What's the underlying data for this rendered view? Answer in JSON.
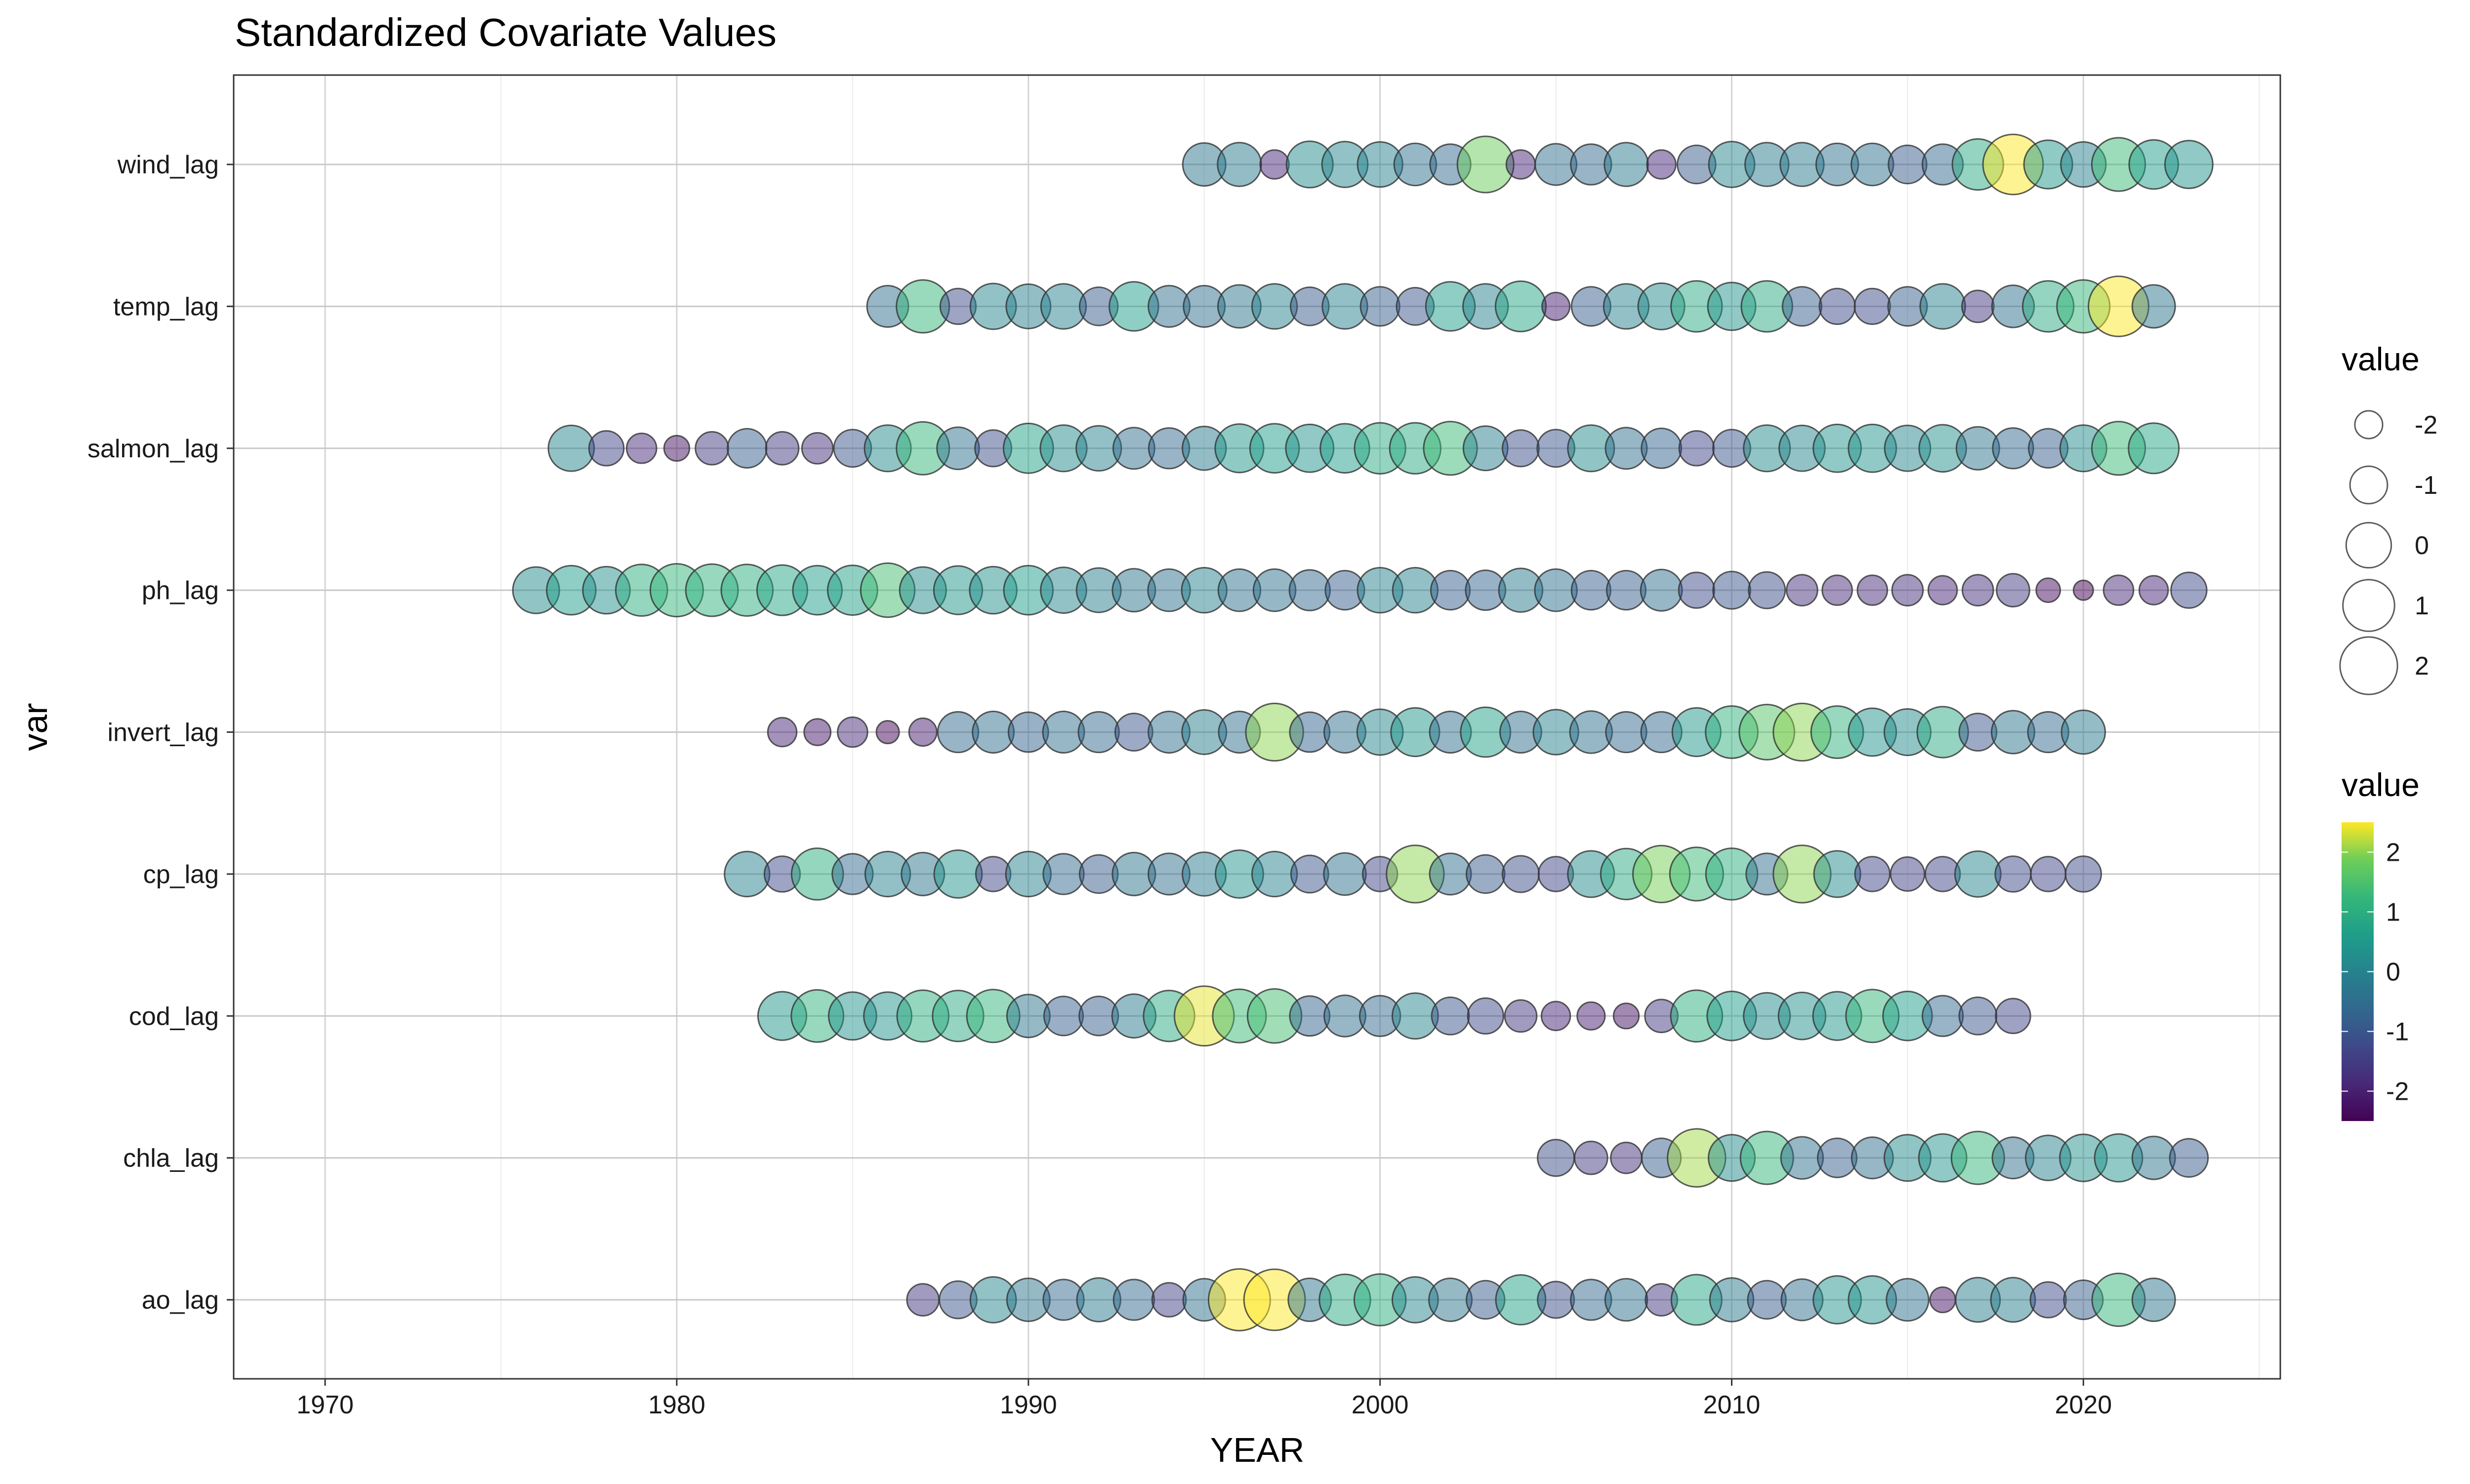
{
  "chart_data": {
    "type": "scatter",
    "title": "Standardized Covariate Values",
    "xlabel": "YEAR",
    "ylabel": "var",
    "xlim": [
      1967.4,
      2025.6
    ],
    "x_ticks": [
      1970,
      1980,
      1990,
      2000,
      2010,
      2020
    ],
    "categories": [
      "wind_lag",
      "temp_lag",
      "salmon_lag",
      "ph_lag",
      "invert_lag",
      "cp_lag",
      "cod_lag",
      "chla_lag",
      "ao_lag"
    ],
    "grid": true,
    "legend_position": "right",
    "size_legend": {
      "title": "value",
      "labels": [
        "-2",
        "-1",
        "0",
        "1",
        "2"
      ],
      "values": [
        -2,
        -1,
        0,
        1,
        2
      ]
    },
    "color_legend": {
      "title": "value",
      "labels": [
        "2",
        "1",
        "0",
        "-1",
        "-2"
      ],
      "values": [
        2,
        1,
        0,
        -1,
        -2
      ],
      "range": [
        -2.5,
        2.5
      ]
    },
    "series": [
      {
        "name": "wind_lag",
        "start_year": 1995,
        "values": [
          -0.3,
          -0.2,
          -1.9,
          0.2,
          0.1,
          0.0,
          -0.4,
          -0.6,
          1.8,
          -1.9,
          -0.5,
          -0.6,
          -0.2,
          -1.9,
          -0.9,
          0.1,
          -0.2,
          -0.2,
          -0.4,
          -0.4,
          -0.9,
          -0.6,
          0.9,
          2.5,
          0.5,
          0.0,
          1.3,
          0.6,
          0.4
        ]
      },
      {
        "name": "temp_lag",
        "start_year": 1986,
        "values": [
          -0.5,
          1.2,
          -1.2,
          0.1,
          -0.1,
          0.0,
          -0.9,
          0.6,
          -0.5,
          -0.5,
          -0.3,
          0.0,
          -0.9,
          0.0,
          -0.8,
          -1.0,
          0.6,
          0.0,
          0.8,
          -2.0,
          -0.8,
          0.0,
          0.2,
          0.9,
          0.4,
          0.9,
          -0.8,
          -1.2,
          -1.2,
          -0.8,
          0.0,
          -1.6,
          -0.4,
          0.9,
          1.2,
          2.5,
          -0.3
        ]
      },
      {
        "name": "salmon_lag",
        "start_year": 1977,
        "values": [
          0.1,
          -1.3,
          -1.8,
          -2.2,
          -1.5,
          -0.8,
          -1.5,
          -1.7,
          -1.0,
          0.2,
          1.2,
          -0.4,
          -1.1,
          0.7,
          0.2,
          0.0,
          -0.5,
          -0.6,
          -0.2,
          0.5,
          0.6,
          0.4,
          0.6,
          0.9,
          0.9,
          1.3,
          -0.1,
          -1.1,
          -1.0,
          0.2,
          -0.5,
          -0.7,
          -1.3,
          -1.0,
          0.2,
          0.1,
          0.4,
          0.4,
          0.1,
          0.3,
          -0.3,
          -0.6,
          -0.8,
          0.2,
          1.3,
          0.8
        ]
      },
      {
        "name": "ph_lag",
        "start_year": 1976,
        "values": [
          0.2,
          0.6,
          0.3,
          1.0,
          1.2,
          1.1,
          1.0,
          0.8,
          0.6,
          0.7,
          1.4,
          0.2,
          0.5,
          0.3,
          0.6,
          0.1,
          -0.1,
          -0.3,
          -0.4,
          0.0,
          -0.4,
          -0.4,
          -0.6,
          -0.8,
          0.0,
          0.0,
          -0.8,
          -0.7,
          -0.2,
          -0.4,
          -0.8,
          -0.8,
          -0.5,
          -1.2,
          -1.0,
          -1.1,
          -1.7,
          -1.8,
          -1.8,
          -1.7,
          -1.9,
          -1.7,
          -1.5,
          -2.3,
          -2.6,
          -1.8,
          -1.9,
          -1.2
        ]
      },
      {
        "name": "invert_lag",
        "start_year": 1983,
        "values": [
          -1.9,
          -2.1,
          -1.8,
          -2.4,
          -2.0,
          -0.6,
          -0.5,
          -0.7,
          -0.5,
          -0.6,
          -1.0,
          -0.5,
          -0.1,
          -0.5,
          2.0,
          -0.7,
          -0.5,
          0.1,
          0.5,
          -0.5,
          0.7,
          -0.5,
          0.0,
          -0.4,
          -0.6,
          -0.6,
          0.5,
          1.1,
          1.6,
          2.0,
          1.1,
          0.4,
          0.2,
          0.9,
          -1.0,
          -0.3,
          -0.6,
          -0.2
        ],
        "missing_years": [
          2021
        ]
      },
      {
        "name": "cp_lag",
        "start_year": 1982,
        "values": [
          0.0,
          -1.2,
          1.0,
          -0.6,
          0.0,
          -0.3,
          0.4,
          -1.3,
          0.0,
          -0.6,
          -0.9,
          -0.3,
          -0.5,
          -0.2,
          0.4,
          0.0,
          -1.0,
          -0.4,
          -1.3,
          2.0,
          -0.5,
          -0.9,
          -1.1,
          -1.3,
          0.2,
          0.9,
          1.9,
          1.3,
          1.0,
          -0.5,
          2.0,
          0.2,
          -1.3,
          -1.4,
          -1.3,
          0.1,
          -1.2,
          -1.3,
          -1.2
        ],
        "missing_years": [
          2022
        ]
      },
      {
        "name": "cod_lag",
        "start_year": 1983,
        "values": [
          0.5,
          1.1,
          0.4,
          0.4,
          1.0,
          0.9,
          1.2,
          -0.3,
          -0.8,
          -0.8,
          -0.2,
          0.9,
          2.4,
          1.3,
          1.4,
          -0.7,
          -0.5,
          -0.6,
          0.1,
          -1.0,
          -1.2,
          -1.6,
          -1.9,
          -2.0,
          -2.2,
          -1.5,
          1.0,
          0.6,
          0.2,
          0.3,
          0.5,
          1.2,
          0.6,
          -0.6,
          -1.0,
          -1.3
        ],
        "missing_years": [
          2021
        ]
      },
      {
        "name": "chla_lag",
        "start_year": 2005,
        "values": [
          -1.1,
          -1.5,
          -1.7,
          -0.8,
          2.1,
          0.2,
          1.2,
          -0.4,
          -0.8,
          -0.5,
          0.2,
          0.4,
          1.2,
          -0.5,
          0.0,
          0.3,
          0.4,
          -0.3,
          -0.9
        ]
      },
      {
        "name": "ao_lag",
        "start_year": 1987,
        "values": [
          -1.6,
          -1.0,
          0.1,
          -0.3,
          -0.6,
          -0.2,
          -0.6,
          -1.4,
          -0.4,
          2.8,
          2.7,
          -0.3,
          0.9,
          1.0,
          0.1,
          -0.3,
          -0.9,
          0.7,
          -1.1,
          -0.6,
          -0.4,
          -1.6,
          0.8,
          -0.2,
          -0.9,
          -0.5,
          0.4,
          0.4,
          -0.4,
          -2.2,
          -0.1,
          -0.1,
          -1.2,
          -0.8,
          1.2,
          -0.3
        ]
      }
    ]
  }
}
